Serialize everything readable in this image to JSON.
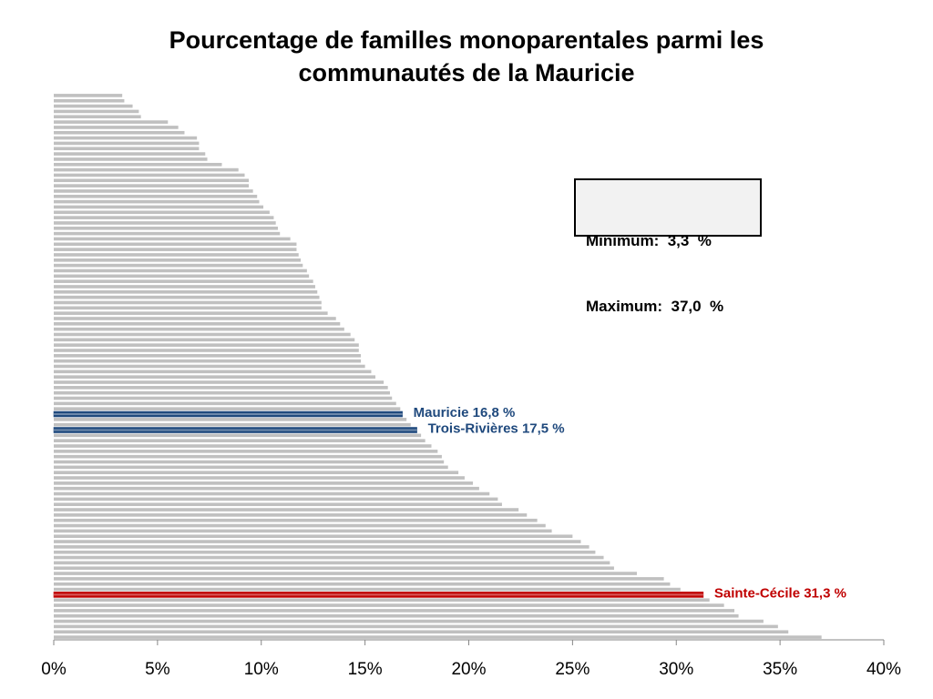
{
  "chart_data": {
    "type": "bar",
    "orientation": "horizontal",
    "title_lines": [
      "Pourcentage de familles monoparentales parmi les",
      "communautés de la Mauricie"
    ],
    "xlabel": "",
    "ylabel": "",
    "xlim": [
      0,
      40
    ],
    "x_ticks": [
      0,
      5,
      10,
      15,
      20,
      25,
      30,
      35,
      40
    ],
    "x_tick_labels": [
      "0%",
      "5%",
      "10%",
      "15%",
      "20%",
      "25%",
      "30%",
      "35%",
      "40%"
    ],
    "grid": false,
    "legend": null,
    "bar_color": "#c0c0c0",
    "values": [
      3.3,
      3.4,
      3.8,
      4.1,
      4.2,
      5.5,
      6.0,
      6.3,
      6.9,
      7.0,
      7.0,
      7.3,
      7.4,
      8.1,
      8.9,
      9.2,
      9.4,
      9.4,
      9.6,
      9.8,
      9.9,
      10.1,
      10.4,
      10.6,
      10.7,
      10.8,
      10.9,
      11.4,
      11.7,
      11.7,
      11.8,
      11.9,
      12.0,
      12.2,
      12.3,
      12.5,
      12.6,
      12.7,
      12.8,
      12.9,
      12.9,
      13.2,
      13.6,
      13.8,
      14.0,
      14.3,
      14.5,
      14.7,
      14.7,
      14.8,
      14.8,
      15.0,
      15.3,
      15.5,
      15.9,
      16.1,
      16.2,
      16.3,
      16.5,
      16.7,
      16.8,
      17.0,
      17.2,
      17.5,
      17.7,
      17.9,
      18.2,
      18.5,
      18.7,
      18.8,
      19.0,
      19.5,
      19.8,
      20.2,
      20.5,
      21.0,
      21.4,
      21.6,
      22.4,
      22.8,
      23.3,
      23.7,
      24.0,
      25.0,
      25.4,
      25.8,
      26.1,
      26.5,
      26.8,
      27.0,
      28.1,
      29.4,
      29.7,
      30.2,
      31.3,
      31.6,
      32.3,
      32.8,
      33.0,
      34.2,
      34.9,
      35.4,
      37.0
    ],
    "highlights": [
      {
        "index": 60,
        "label": "Mauricie  16,8  %",
        "color": "#1f497d"
      },
      {
        "index": 63,
        "label": "Trois-Rivières  17,5  %",
        "color": "#1f497d"
      },
      {
        "index": 94,
        "label": "Sainte-Cécile  31,3  %",
        "color": "#c00000"
      }
    ],
    "annotations": {
      "minimum": "Minimum:  3,3  %",
      "maximum": "Maximum:  37,0  %"
    }
  }
}
